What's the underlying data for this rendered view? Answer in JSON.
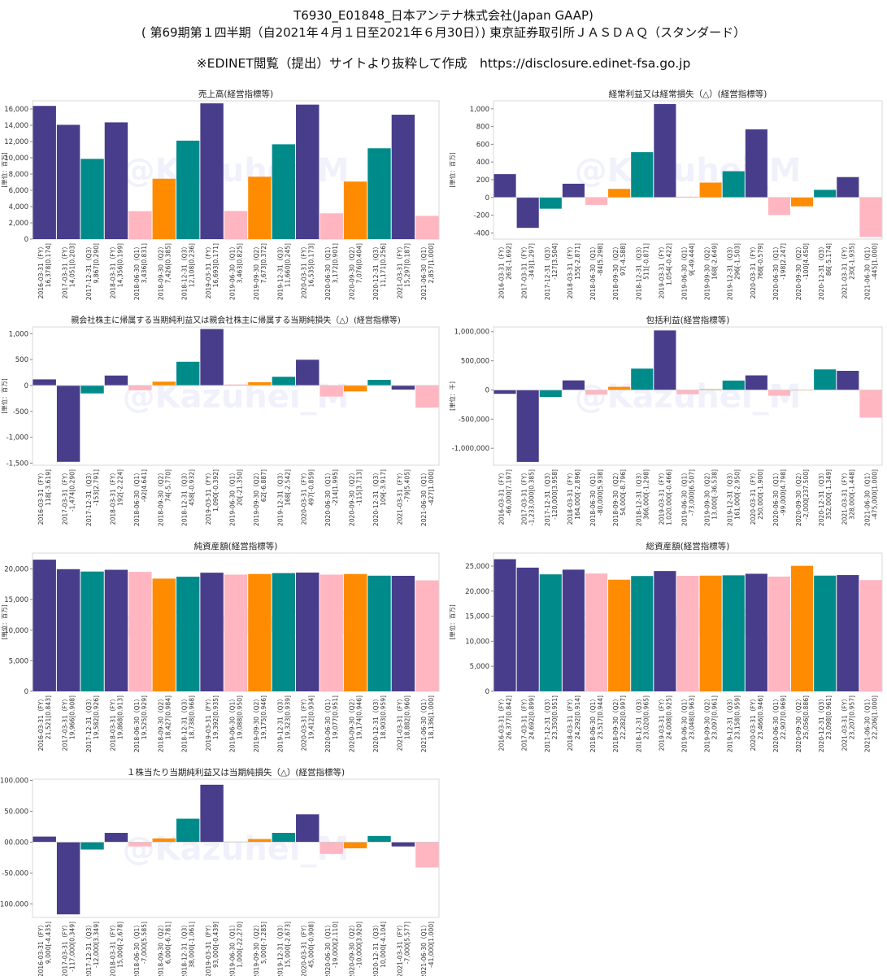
{
  "header": {
    "line1": "T6930_E01848_日本アンテナ株式会社(Japan GAAP)",
    "line2": "( 第69期第１四半期（自2021年４月１日至2021年６月30日）) 東京証券取引所ＪＡＳＤＡＱ（スタンダード）",
    "line3": "※EDINET閲覧（提出）サイトより抜粋して作成　https://disclosure.edinet-fsa.go.jp"
  },
  "watermark": "@Kazuhei_M",
  "colors": {
    "FY": "#483D8B",
    "Q3": "#008B8B",
    "Q2": "#FF8C00",
    "Q1": "#FFB6C1"
  },
  "chart_data": [
    {
      "type": "bar",
      "title": "売上高(経営指標等)",
      "ylabel": "[単位：百万]",
      "ylim": [
        0,
        17000
      ],
      "yticks": [
        0,
        2000,
        4000,
        6000,
        8000,
        10000,
        12000,
        14000,
        16000
      ],
      "tick_format": "int",
      "periods": [
        "FY",
        "FY",
        "Q3",
        "FY",
        "Q1",
        "Q2",
        "Q3",
        "FY",
        "Q1",
        "Q2",
        "Q3",
        "FY",
        "Q1",
        "Q2",
        "Q3",
        "FY",
        "Q1"
      ],
      "values": [
        16378,
        14051,
        9867,
        14356,
        3436,
        7426,
        12108,
        16693,
        3463,
        7673,
        11660,
        16535,
        3172,
        7076,
        11171,
        15297,
        2857
      ],
      "categories": [
        "2016-03-31（FY）\n16,378[0.174]",
        "2017-03-31（FY）\n14,051[0.203]",
        "2017-12-31（Q3）\n9,867[0.290]",
        "2018-03-31（FY）\n14,356[0.199]",
        "2018-06-30（Q1）\n3,436[0.831]",
        "2018-09-30（Q2）\n7,426[0.385]",
        "2018-12-31（Q3）\n12,108[0.236]",
        "2019-03-31（FY）\n16,693[0.171]",
        "2019-06-30（Q1）\n3,463[0.825]",
        "2019-09-30（Q2）\n7,673[0.372]",
        "2019-12-31（Q3）\n11,660[0.245]",
        "2020-03-31（FY）\n16,535[0.173]",
        "2020-06-30（Q1）\n3,172[0.901]",
        "2020-09-30（Q2）\n7,076[0.404]",
        "2020-12-31（Q3）\n11,171[0.256]",
        "2021-03-31（FY）\n15,297[0.187]",
        "2021-06-30（Q1）\n2,857[1.000]"
      ]
    },
    {
      "type": "bar",
      "title": "経常利益又は経常損失（△）(経営指標等)",
      "ylabel": "[単位：百万]",
      "ylim": [
        -470,
        1090
      ],
      "yticks": [
        -400,
        -200,
        0,
        200,
        400,
        600,
        800,
        1000
      ],
      "tick_format": "int",
      "periods": [
        "FY",
        "FY",
        "Q3",
        "FY",
        "Q1",
        "Q2",
        "Q3",
        "FY",
        "Q1",
        "Q2",
        "Q3",
        "FY",
        "Q1",
        "Q2",
        "Q3",
        "FY",
        "Q1"
      ],
      "values": [
        263,
        -343,
        -127,
        155,
        -84,
        97,
        511,
        1054,
        9,
        168,
        296,
        768,
        -198,
        -100,
        86,
        230,
        -445
      ],
      "categories": [
        "2016-03-31（FY）\n263[-1.692]",
        "2017-03-31（FY）\n-343[1.297]",
        "2017-12-31（Q3）\n-127[3.504]",
        "2018-03-31（FY）\n155[-2.871]",
        "2018-06-30（Q1）\n-84[5.298]",
        "2018-09-30（Q2）\n97[-4.588]",
        "2018-12-31（Q3）\n511[-0.871]",
        "2019-03-31（FY）\n1,054[-0.422]",
        "2019-06-30（Q1）\n9[-49.444]",
        "2019-09-30（Q2）\n168[-2.649]",
        "2019-12-31（Q3）\n296[-1.503]",
        "2020-03-31（FY）\n768[-0.579]",
        "2020-06-30（Q1）\n-198[2.247]",
        "2020-09-30（Q2）\n-100[4.450]",
        "2020-12-31（Q3）\n86[-5.174]",
        "2021-03-31（FY）\n230[-1.935]",
        "2021-06-30（Q1）\n-445[1.000]"
      ]
    },
    {
      "type": "bar",
      "title": "親会社株主に帰属する当期純利益又は親会社株主に帰属する当期純損失（△）(経営指標等)",
      "ylabel": "[単位：百万]",
      "ylim": [
        -1540,
        1130
      ],
      "yticks": [
        -1500,
        -1000,
        -500,
        0,
        500,
        1000
      ],
      "tick_format": "int",
      "periods": [
        "FY",
        "FY",
        "Q3",
        "FY",
        "Q1",
        "Q2",
        "Q3",
        "FY",
        "Q1",
        "Q2",
        "Q3",
        "FY",
        "Q1",
        "Q2",
        "Q3",
        "FY",
        "Q1"
      ],
      "values": [
        118,
        -1474,
        -153,
        192,
        -92,
        74,
        458,
        1090,
        20,
        62,
        168,
        497,
        -214,
        -115,
        109,
        -79,
        -427
      ],
      "categories": [
        "2016-03-31（FY）\n118[-3.619]",
        "2017-03-31（FY）\n-1,474[0.290]",
        "2017-12-31（Q3）\n-153[2.791]",
        "2018-03-31（FY）\n192[-2.224]",
        "2018-06-30（Q1）\n-92[4.641]",
        "2018-09-30（Q2）\n74[-5.770]",
        "2018-12-31（Q3）\n458[-0.932]",
        "2019-03-31（FY）\n1,090[-0.392]",
        "2019-06-30（Q1）\n20[-21.350]",
        "2019-09-30（Q2）\n62[-6.887]",
        "2019-12-31（Q3）\n168[-2.542]",
        "2020-03-31（FY）\n497[-0.859]",
        "2020-06-30（Q1）\n-214[1.995]",
        "2020-09-30（Q2）\n-115[3.713]",
        "2020-12-31（Q3）\n109[-3.917]",
        "2021-03-31（FY）\n-79[5.405]",
        "2021-06-30（Q1）\n-427[1.000]"
      ]
    },
    {
      "type": "bar",
      "title": "包括利益(経営指標等)",
      "ylabel": "[単位：千]",
      "ylim": [
        -1290000,
        1080000
      ],
      "yticks": [
        -1000000,
        -500000,
        0,
        500000,
        1000000
      ],
      "tick_format": "int",
      "periods": [
        "FY",
        "FY",
        "Q3",
        "FY",
        "Q1",
        "Q2",
        "Q3",
        "FY",
        "Q1",
        "Q2",
        "Q3",
        "FY",
        "Q1",
        "Q2",
        "Q3",
        "FY",
        "Q1"
      ],
      "values": [
        -66000,
        -1233000,
        -120000,
        164000,
        -80000,
        54000,
        366000,
        1020000,
        -73000,
        13000,
        161000,
        250000,
        -99000,
        -2000,
        352000,
        328000,
        -475000
      ],
      "categories": [
        "2016-03-31（FY）\n-66,000[7.197]",
        "2017-03-31（FY）\n-1,233,000[0.385]",
        "2017-12-31（Q3）\n-120,000[3.958]",
        "2018-03-31（FY）\n164,000[-2.896]",
        "2018-06-30（Q1）\n-80,000[5.938]",
        "2018-09-30（Q2）\n54,000[-8.796]",
        "2018-12-31（Q3）\n366,000[-1.298]",
        "2019-03-31（FY）\n1,020,000[-0.466]",
        "2019-06-30（Q1）\n-73,000[6.507]",
        "2019-09-30（Q2）\n13,000[-36.538]",
        "2019-12-31（Q3）\n161,000[-2.950]",
        "2020-03-31（FY）\n250,000[-1.900]",
        "2020-06-30（Q1）\n-99,000[4.798]",
        "2020-09-30（Q2）\n-2,000[237.500]",
        "2020-12-31（Q3）\n352,000[-1.349]",
        "2021-03-31（FY）\n328,000[-1.448]",
        "2021-06-30（Q1）\n-475,000[1.000]"
      ]
    },
    {
      "type": "bar",
      "title": "純資産額(経営指標等)",
      "ylabel": "[単位：百万]",
      "ylim": [
        0,
        22600
      ],
      "yticks": [
        0,
        5000,
        10000,
        15000,
        20000
      ],
      "tick_format": "int",
      "periods": [
        "FY",
        "FY",
        "Q3",
        "FY",
        "Q1",
        "Q2",
        "Q3",
        "FY",
        "Q1",
        "Q2",
        "Q3",
        "FY",
        "Q1",
        "Q2",
        "Q3",
        "FY",
        "Q1"
      ],
      "values": [
        21521,
        19966,
        19582,
        19868,
        19525,
        18427,
        18738,
        19392,
        19088,
        19175,
        19323,
        19412,
        19077,
        19174,
        18903,
        18882,
        18136
      ],
      "categories": [
        "2016-03-31（FY）\n21,521[0.843]",
        "2017-03-31（FY）\n19,966[0.908]",
        "2017-12-31（Q3）\n19,582[0.926]",
        "2018-03-31（FY）\n19,868[0.913]",
        "2018-06-30（Q1）\n19,525[0.929]",
        "2018-09-30（Q2）\n18,427[0.984]",
        "2018-12-31（Q3）\n18,738[0.968]",
        "2019-03-31（FY）\n19,392[0.935]",
        "2019-06-30（Q1）\n19,088[0.950]",
        "2019-09-30（Q2）\n19,175[0.946]",
        "2019-12-31（Q3）\n19,323[0.939]",
        "2020-03-31（FY）\n19,412[0.934]",
        "2020-06-30（Q1）\n19,077[0.951]",
        "2020-09-30（Q2）\n19,174[0.946]",
        "2020-12-31（Q3）\n18,903[0.959]",
        "2021-03-31（FY）\n18,882[0.960]",
        "2021-06-30（Q1）\n18,136[1.000]"
      ]
    },
    {
      "type": "bar",
      "title": "総資産額(経営指標等)",
      "ylabel": "[単位：百万]",
      "ylim": [
        0,
        27600
      ],
      "yticks": [
        0,
        5000,
        10000,
        15000,
        20000,
        25000
      ],
      "tick_format": "int",
      "periods": [
        "FY",
        "FY",
        "Q3",
        "FY",
        "Q1",
        "Q2",
        "Q3",
        "FY",
        "Q1",
        "Q2",
        "Q3",
        "FY",
        "Q1",
        "Q2",
        "Q3",
        "FY",
        "Q1"
      ],
      "values": [
        26377,
        24692,
        23350,
        24292,
        23517,
        22282,
        23020,
        24008,
        23048,
        23097,
        23158,
        23466,
        22907,
        25056,
        23098,
        23207,
        22206
      ],
      "categories": [
        "2016-03-31（FY）\n26,377[0.842]",
        "2017-03-31（FY）\n24,692[0.899]",
        "2017-12-31（Q3）\n23,350[0.951]",
        "2018-03-31（FY）\n24,292[0.914]",
        "2018-06-30（Q1）\n23,517[0.944]",
        "2018-09-30（Q2）\n22,282[0.997]",
        "2018-12-31（Q3）\n23,020[0.965]",
        "2019-03-31（FY）\n24,008[0.925]",
        "2019-06-30（Q1）\n23,048[0.963]",
        "2019-09-30（Q2）\n23,097[0.961]",
        "2019-12-31（Q3）\n23,158[0.959]",
        "2020-03-31（FY）\n23,466[0.946]",
        "2020-06-30（Q1）\n22,907[0.969]",
        "2020-09-30（Q2）\n25,056[0.886]",
        "2020-12-31（Q3）\n23,098[0.961]",
        "2021-03-31（FY）\n23,207[0.957]",
        "2021-06-30（Q1）\n22,206[1.000]"
      ]
    },
    {
      "type": "bar",
      "title": "１株当たり当期純利益又は当期純損失（△）(経営指標等)",
      "ylabel": "",
      "ylim": [
        -122000,
        102000
      ],
      "yticks": [
        -100000,
        -50000,
        0,
        50000,
        100000
      ],
      "tick_format": "dot3",
      "periods": [
        "FY",
        "FY",
        "Q3",
        "FY",
        "Q1",
        "Q2",
        "Q3",
        "FY",
        "Q1",
        "Q2",
        "Q3",
        "FY",
        "Q1",
        "Q2",
        "Q3",
        "FY",
        "Q1"
      ],
      "values": [
        9000,
        -117000,
        -12000,
        15000,
        -7000,
        6000,
        38000,
        93000,
        1000,
        5000,
        15000,
        45000,
        -19000,
        -10000,
        10000,
        -7000,
        -41000
      ],
      "categories": [
        "2016-03-31（FY）\n9,000[-4.435]",
        "2017-03-31（FY）\n-117,000[0.349]",
        "2017-12-31（Q3）\n-12,000[3.349]",
        "2018-03-31（FY）\n15,000[-2.678]",
        "2018-06-30（Q1）\n-7,000[5.585]",
        "2018-09-30（Q2）\n6,000[-6.781]",
        "2018-12-31（Q3）\n38,000[-1.061]",
        "2019-03-31（FY）\n93,000[-0.439]",
        "2019-06-30（Q1）\n1,000[-22.270]",
        "2019-09-30（Q2）\n5,000[-7.285]",
        "2019-12-31（Q3）\n15,000[-2.673]",
        "2020-03-31（FY）\n45,000[-0.908]",
        "2020-06-30（Q1）\n-19,000[2.110]",
        "2020-09-30（Q2）\n-10,000[3.920]",
        "2020-12-31（Q3）\n10,000[-4.104]",
        "2021-03-31（FY）\n-7,000[5.577]",
        "2021-06-30（Q1）\n-41,000[1.000]"
      ]
    }
  ]
}
